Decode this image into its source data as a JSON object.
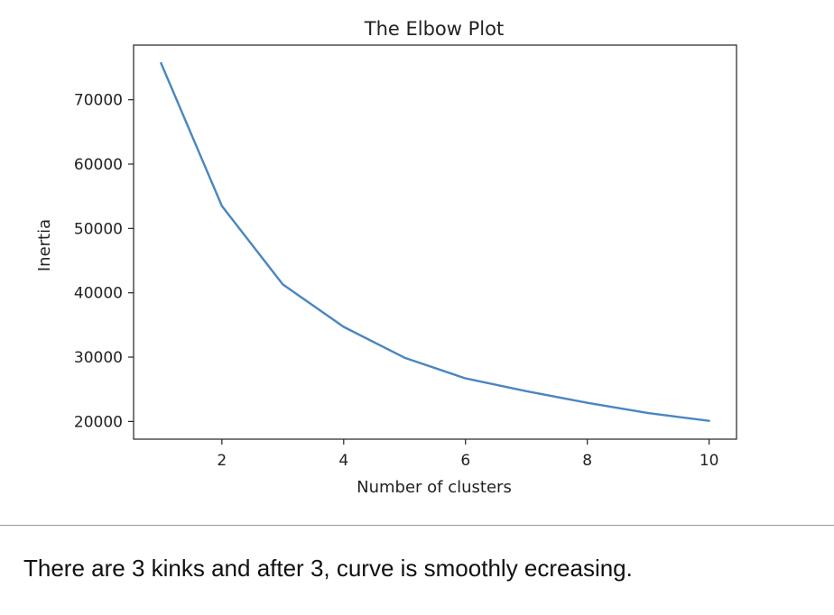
{
  "chart_data": {
    "type": "line",
    "title": "The Elbow Plot",
    "xlabel": "Number of clusters",
    "ylabel": "Inertia",
    "x": [
      1,
      2,
      3,
      4,
      5,
      6,
      7,
      8,
      9,
      10
    ],
    "series": [
      {
        "values": [
          75700,
          53500,
          41300,
          34700,
          29900,
          26700,
          24700,
          22900,
          21300,
          20100
        ],
        "color": "#4a86c0"
      }
    ],
    "xticks": [
      2,
      4,
      6,
      8,
      10
    ],
    "yticks": [
      20000,
      30000,
      40000,
      50000,
      60000,
      70000
    ],
    "xticklabels": [
      "2",
      "4",
      "6",
      "8",
      "10"
    ],
    "yticklabels": [
      "20000",
      "30000",
      "40000",
      "50000",
      "60000",
      "70000"
    ],
    "xlim": [
      0.55,
      10.45
    ],
    "ylim": [
      17250,
      78500
    ],
    "grid": false
  },
  "caption": "There are 3 kinks and after 3, curve is smoothly ecreasing."
}
